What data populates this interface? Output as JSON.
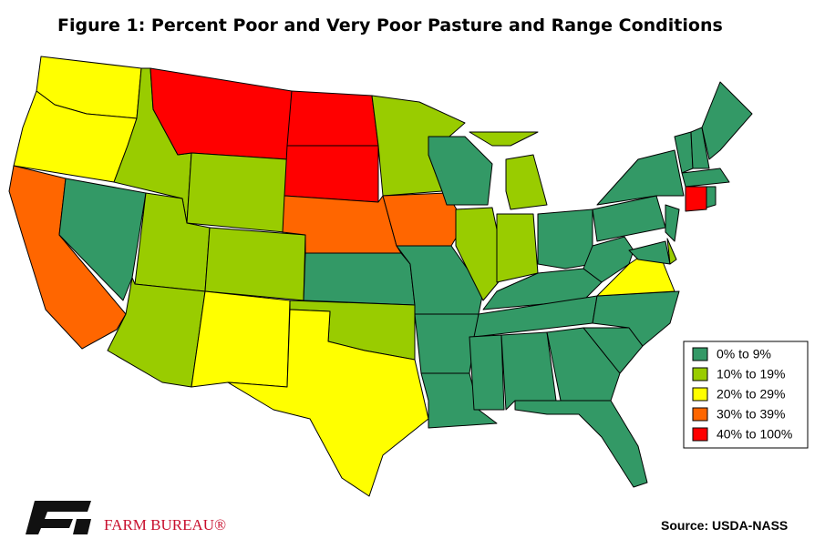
{
  "title": "Figure 1: Percent Poor and Very Poor Pasture and Range Conditions",
  "legend": {
    "items": [
      {
        "label": "0% to 9%",
        "color": "#339966"
      },
      {
        "label": "10% to 19%",
        "color": "#99cc00"
      },
      {
        "label": "20% to 29%",
        "color": "#ffff00"
      },
      {
        "label": "30% to 39%",
        "color": "#ff6600"
      },
      {
        "label": "40% to 100%",
        "color": "#ff0000"
      }
    ]
  },
  "source": "Source: USDA-NASS",
  "logo": {
    "text": "FARM BUREAU®"
  }
}
